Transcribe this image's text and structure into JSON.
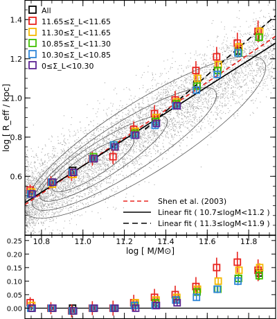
{
  "chart_data": [
    {
      "type": "scatter",
      "xlabel": "log [ M/M⊙]",
      "ylabel": "log [ R_eff / kpc]",
      "xlim": [
        10.72,
        11.93
      ],
      "ylim": [
        0.3,
        1.5
      ],
      "yticks": [
        "0.6",
        "0.8",
        "1.0",
        "1.2",
        "1.4"
      ],
      "xticks": [
        "10.8",
        "11.0",
        "11.2",
        "11.4",
        "11.6",
        "11.8"
      ],
      "legend_top_left": [
        {
          "label": "All",
          "color": "#000000"
        },
        {
          "label": "11.65≤Σ_L<11.65",
          "color": "#e8231e"
        },
        {
          "label": "11.30≤Σ_L<11.65",
          "color": "#f5b800"
        },
        {
          "label": "10.85≤Σ_L<11.30",
          "color": "#40c000"
        },
        {
          "label": "10.30≤Σ_L<10.85",
          "color": "#2f86d8"
        },
        {
          "label": "0≤Σ_L<10.30",
          "color": "#5c2394"
        }
      ],
      "legend_lines": [
        {
          "label": "Shen et al. (2003)",
          "style": "dashed",
          "color": "#e8231e"
        },
        {
          "label": "Linear fit ( 10.7≤logM<11.2 )",
          "style": "solid",
          "color": "#000000"
        },
        {
          "label": "Linear fit ( 11.3≤logM<11.9 )",
          "style": "dashed",
          "color": "#000000"
        }
      ],
      "fits": [
        {
          "style": "dashed",
          "color": "#e8231e",
          "x": [
            10.72,
            11.93
          ],
          "y": [
            0.455,
            1.315
          ]
        },
        {
          "style": "solid",
          "color": "#000000",
          "x": [
            10.72,
            11.93
          ],
          "y": [
            0.465,
            1.28
          ]
        },
        {
          "style": "dashed",
          "color": "#000000",
          "x": [
            11.3,
            11.93
          ],
          "y": [
            0.84,
            1.42
          ]
        }
      ],
      "series": [
        {
          "color": "#000000",
          "x": [
            10.75,
            10.85,
            10.95,
            11.05,
            11.15,
            11.25,
            11.35,
            11.45,
            11.55,
            11.65,
            11.75,
            11.85
          ],
          "y": [
            0.51,
            0.57,
            0.63,
            0.69,
            0.76,
            0.82,
            0.88,
            0.97,
            1.07,
            1.14,
            1.24,
            1.31
          ]
        },
        {
          "color": "#e8231e",
          "x": [
            10.75,
            10.85,
            10.95,
            11.05,
            11.15,
            11.25,
            11.35,
            11.45,
            11.55,
            11.65,
            11.75,
            11.85
          ],
          "y": [
            0.53,
            0.57,
            0.61,
            0.69,
            0.7,
            0.84,
            0.92,
            0.99,
            1.14,
            1.21,
            1.28,
            1.34
          ]
        },
        {
          "color": "#f5b800",
          "x": [
            10.75,
            10.85,
            10.95,
            11.05,
            11.15,
            11.25,
            11.35,
            11.45,
            11.55,
            11.65,
            11.75,
            11.85
          ],
          "y": [
            0.52,
            0.56,
            0.61,
            0.69,
            0.75,
            0.83,
            0.9,
            0.98,
            1.1,
            1.17,
            1.26,
            1.34
          ]
        },
        {
          "color": "#40c000",
          "x": [
            10.75,
            10.85,
            10.95,
            11.05,
            11.15,
            11.25,
            11.35,
            11.45,
            11.55,
            11.65,
            11.75,
            11.85
          ],
          "y": [
            0.51,
            0.57,
            0.62,
            0.7,
            0.76,
            0.82,
            0.88,
            0.97,
            1.06,
            1.14,
            1.23,
            1.31
          ]
        },
        {
          "color": "#2f86d8",
          "x": [
            10.75,
            10.85,
            10.95,
            11.05,
            11.15,
            11.25,
            11.35,
            11.45,
            11.55,
            11.65,
            11.75
          ],
          "y": [
            0.51,
            0.57,
            0.62,
            0.69,
            0.76,
            0.81,
            0.86,
            0.96,
            1.04,
            1.12,
            1.23
          ]
        },
        {
          "color": "#5c2394",
          "x": [
            10.75,
            10.85,
            10.95,
            11.05,
            11.15,
            11.25,
            11.35,
            11.45
          ],
          "y": [
            0.51,
            0.57,
            0.62,
            0.69,
            0.75,
            0.81,
            0.87,
            0.96
          ]
        }
      ]
    },
    {
      "type": "scatter",
      "xlim": [
        10.72,
        11.93
      ],
      "ylim": [
        -0.04,
        0.27
      ],
      "yticks": [
        "0.00",
        "0.05",
        "0.10",
        "0.15",
        "0.20",
        "0.25"
      ],
      "reference_line_y": 0.0,
      "series": [
        {
          "color": "#000000",
          "x": [
            10.75,
            10.85,
            10.95,
            11.05,
            11.15,
            11.25,
            11.35,
            11.45,
            11.55,
            11.65,
            11.75,
            11.85
          ],
          "y": [
            0.0,
            0.0,
            0.0,
            0.0,
            0.0,
            0.01,
            0.01,
            0.03,
            0.06,
            0.07,
            0.11,
            0.13
          ]
        },
        {
          "color": "#e8231e",
          "x": [
            10.75,
            10.85,
            10.95,
            11.05,
            11.15,
            11.25,
            11.35,
            11.45,
            11.55,
            11.65,
            11.75,
            11.85
          ],
          "y": [
            0.02,
            0.0,
            -0.01,
            0.0,
            0.0,
            0.02,
            0.04,
            0.05,
            0.08,
            0.15,
            0.17,
            0.14
          ]
        },
        {
          "color": "#f5b800",
          "x": [
            10.75,
            10.85,
            10.95,
            11.05,
            11.15,
            11.25,
            11.35,
            11.45,
            11.55,
            11.65,
            11.75,
            11.85
          ],
          "y": [
            0.01,
            0.0,
            -0.01,
            0.0,
            0.0,
            0.02,
            0.03,
            0.04,
            0.07,
            0.1,
            0.14,
            0.15
          ]
        },
        {
          "color": "#40c000",
          "x": [
            10.75,
            10.85,
            10.95,
            11.05,
            11.15,
            11.25,
            11.35,
            11.45,
            11.55,
            11.65,
            11.75,
            11.85
          ],
          "y": [
            0.0,
            0.0,
            -0.01,
            0.0,
            0.0,
            0.01,
            0.02,
            0.03,
            0.06,
            0.07,
            0.11,
            0.12
          ]
        },
        {
          "color": "#2f86d8",
          "x": [
            10.75,
            10.85,
            10.95,
            11.05,
            11.15,
            11.25,
            11.35,
            11.45,
            11.55,
            11.65,
            11.75
          ],
          "y": [
            0.0,
            0.0,
            -0.01,
            0.0,
            0.0,
            0.01,
            0.01,
            0.03,
            0.04,
            0.07,
            0.1
          ]
        },
        {
          "color": "#5c2394",
          "x": [
            10.75,
            10.85,
            10.95,
            11.05,
            11.15,
            11.25,
            11.35,
            11.45
          ],
          "y": [
            0.0,
            0.0,
            -0.01,
            0.0,
            0.0,
            0.0,
            0.01,
            0.02
          ]
        }
      ]
    }
  ]
}
